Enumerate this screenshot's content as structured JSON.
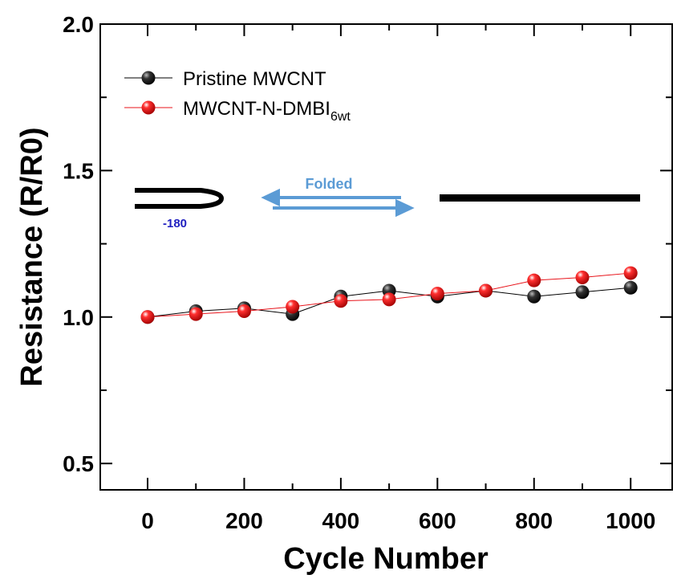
{
  "chart_data": {
    "type": "line",
    "x_label": "Cycle Number",
    "y_label": "Resistance (R/R0)",
    "x": [
      0,
      100,
      200,
      300,
      400,
      500,
      600,
      700,
      800,
      900,
      1000
    ],
    "series": [
      {
        "name": "Pristine MWCNT",
        "color": "#000000",
        "values": [
          1.0,
          1.02,
          1.03,
          1.01,
          1.07,
          1.09,
          1.07,
          1.09,
          1.07,
          1.085,
          1.1
        ]
      },
      {
        "name": "MWCNT-N-DMBI",
        "name_subscript": "6wt",
        "color": "#e8141b",
        "values": [
          1.0,
          1.01,
          1.02,
          1.035,
          1.055,
          1.06,
          1.08,
          1.09,
          1.125,
          1.135,
          1.15
        ]
      }
    ],
    "xlim": [
      -98,
      1086
    ],
    "ylim": [
      0.41,
      2.0
    ],
    "xticks": [
      0,
      200,
      400,
      600,
      800,
      1000
    ],
    "xminorticks": [
      100,
      300,
      500,
      700,
      900
    ],
    "yticks": [
      {
        "value": 0.5,
        "label": "0.5"
      },
      {
        "value": 1.0,
        "label": "1.0"
      },
      {
        "value": 1.5,
        "label": "1.5"
      },
      {
        "value": 2.0,
        "label": "2.0"
      }
    ],
    "yminorticks": [
      0.75,
      1.25,
      1.75
    ],
    "annotations": [
      "Folded",
      "-180"
    ],
    "legend": "upper left"
  }
}
